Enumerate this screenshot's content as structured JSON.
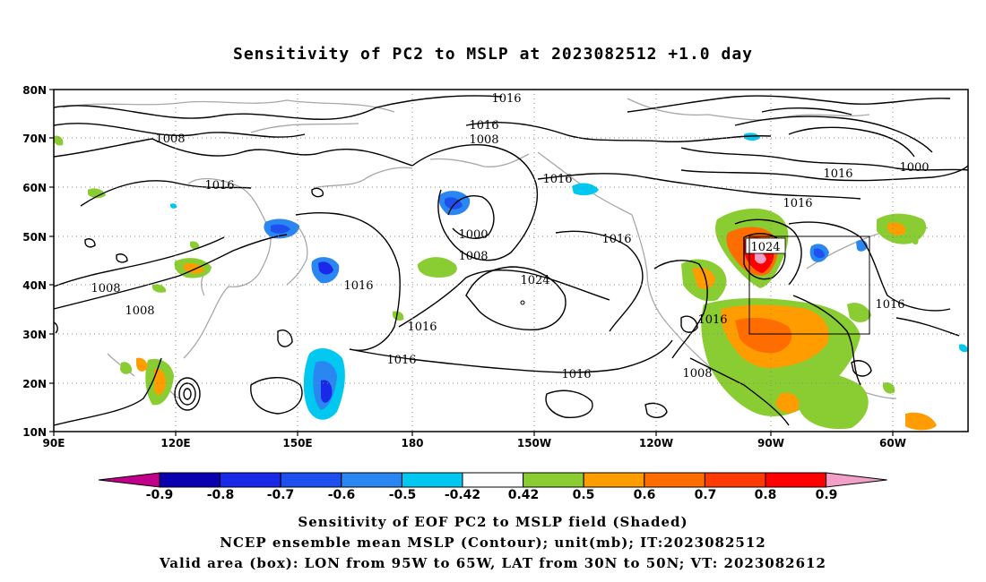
{
  "title": "Sensitivity of PC2 to MSLP at 2023082512 +1.0 day",
  "lat_labels": [
    "80N",
    "70N",
    "60N",
    "50N",
    "40N",
    "30N",
    "20N",
    "10N"
  ],
  "lon_labels": [
    "90E",
    "120E",
    "150E",
    "180",
    "150W",
    "120W",
    "90W",
    "60W"
  ],
  "contour_labels": [
    "1016",
    "1016",
    "1008",
    "1008",
    "1016",
    "1016",
    "1016",
    "1000",
    "1008",
    "1024",
    "1016",
    "1016",
    "1008",
    "1008",
    "1016",
    "1016",
    "1016",
    "1016",
    "1008",
    "1016",
    "1000",
    "1024",
    "1016"
  ],
  "colorbar": {
    "labels": [
      "-0.9",
      "-0.8",
      "-0.7",
      "-0.6",
      "-0.5",
      "-0.42",
      "0.42",
      "0.5",
      "0.6",
      "0.7",
      "0.8",
      "0.9"
    ],
    "colors": [
      "#c0008a",
      "#0a00b0",
      "#1a28e8",
      "#1e50f0",
      "#2a86f0",
      "#00c8f0",
      "#ffffff",
      "#8acd32",
      "#ff9d00",
      "#ff6c00",
      "#ff3a00",
      "#ff0000",
      "#f2a0c8"
    ]
  },
  "valid_box": {
    "lon": [
      "95W",
      "65W"
    ],
    "lat": [
      "30N",
      "50N"
    ]
  },
  "captions": {
    "line1": "Sensitivity of EOF PC2 to MSLP field (Shaded)",
    "line2": "NCEP ensemble mean MSLP (Contour); unit(mb); IT:2023082512",
    "line3": "Valid area (box): LON from 95W to 65W, LAT from 30N to 50N; VT: 2023082612"
  }
}
